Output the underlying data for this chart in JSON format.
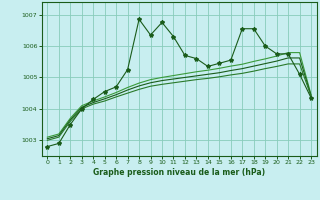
{
  "bg_color": "#c8eef0",
  "grid_color": "#88ccbb",
  "line_color_dark": "#1a5c1a",
  "line_color_mid": "#2a7a2a",
  "line_color_light": "#3a9a3a",
  "xlabel": "Graphe pression niveau de la mer (hPa)",
  "ylim": [
    1002.5,
    1007.4
  ],
  "xlim": [
    -0.5,
    23.5
  ],
  "yticks": [
    1003,
    1004,
    1005,
    1006,
    1007
  ],
  "xticks": [
    0,
    1,
    2,
    3,
    4,
    5,
    6,
    7,
    8,
    9,
    10,
    11,
    12,
    13,
    14,
    15,
    16,
    17,
    18,
    19,
    20,
    21,
    22,
    23
  ],
  "series1_x": [
    0,
    1,
    2,
    3,
    4,
    5,
    6,
    7,
    8,
    9,
    10,
    11,
    12,
    13,
    14,
    15,
    16,
    17,
    18,
    19,
    20,
    21,
    22,
    23
  ],
  "series1_y": [
    1002.8,
    1002.9,
    1003.5,
    1004.0,
    1004.3,
    1004.55,
    1004.7,
    1005.25,
    1006.85,
    1006.35,
    1006.75,
    1006.3,
    1005.7,
    1005.6,
    1005.35,
    1005.45,
    1005.55,
    1006.55,
    1006.55,
    1006.0,
    1005.75,
    1005.75,
    1005.1,
    1004.35
  ],
  "series2_x": [
    0,
    1,
    2,
    3,
    4,
    5,
    6,
    7,
    8,
    9,
    10,
    11,
    12,
    13,
    14,
    15,
    16,
    17,
    18,
    19,
    20,
    21,
    22,
    23
  ],
  "series2_y": [
    1003.0,
    1003.1,
    1003.6,
    1004.0,
    1004.15,
    1004.25,
    1004.38,
    1004.5,
    1004.62,
    1004.72,
    1004.78,
    1004.83,
    1004.88,
    1004.93,
    1004.97,
    1005.02,
    1005.08,
    1005.13,
    1005.2,
    1005.28,
    1005.35,
    1005.43,
    1005.43,
    1004.4
  ],
  "series3_x": [
    0,
    1,
    2,
    3,
    4,
    5,
    6,
    7,
    8,
    9,
    10,
    11,
    12,
    13,
    14,
    15,
    16,
    17,
    18,
    19,
    20,
    21,
    22,
    23
  ],
  "series3_y": [
    1003.05,
    1003.15,
    1003.65,
    1004.05,
    1004.2,
    1004.32,
    1004.45,
    1004.6,
    1004.73,
    1004.83,
    1004.9,
    1004.95,
    1005.0,
    1005.05,
    1005.1,
    1005.15,
    1005.22,
    1005.28,
    1005.36,
    1005.44,
    1005.52,
    1005.62,
    1005.62,
    1004.42
  ],
  "series4_x": [
    0,
    1,
    2,
    3,
    4,
    5,
    6,
    7,
    8,
    9,
    10,
    11,
    12,
    13,
    14,
    15,
    16,
    17,
    18,
    19,
    20,
    21,
    22,
    23
  ],
  "series4_y": [
    1003.1,
    1003.2,
    1003.7,
    1004.1,
    1004.25,
    1004.38,
    1004.52,
    1004.68,
    1004.82,
    1004.93,
    1005.0,
    1005.06,
    1005.12,
    1005.18,
    1005.23,
    1005.29,
    1005.36,
    1005.42,
    1005.51,
    1005.59,
    1005.68,
    1005.79,
    1005.79,
    1004.45
  ]
}
